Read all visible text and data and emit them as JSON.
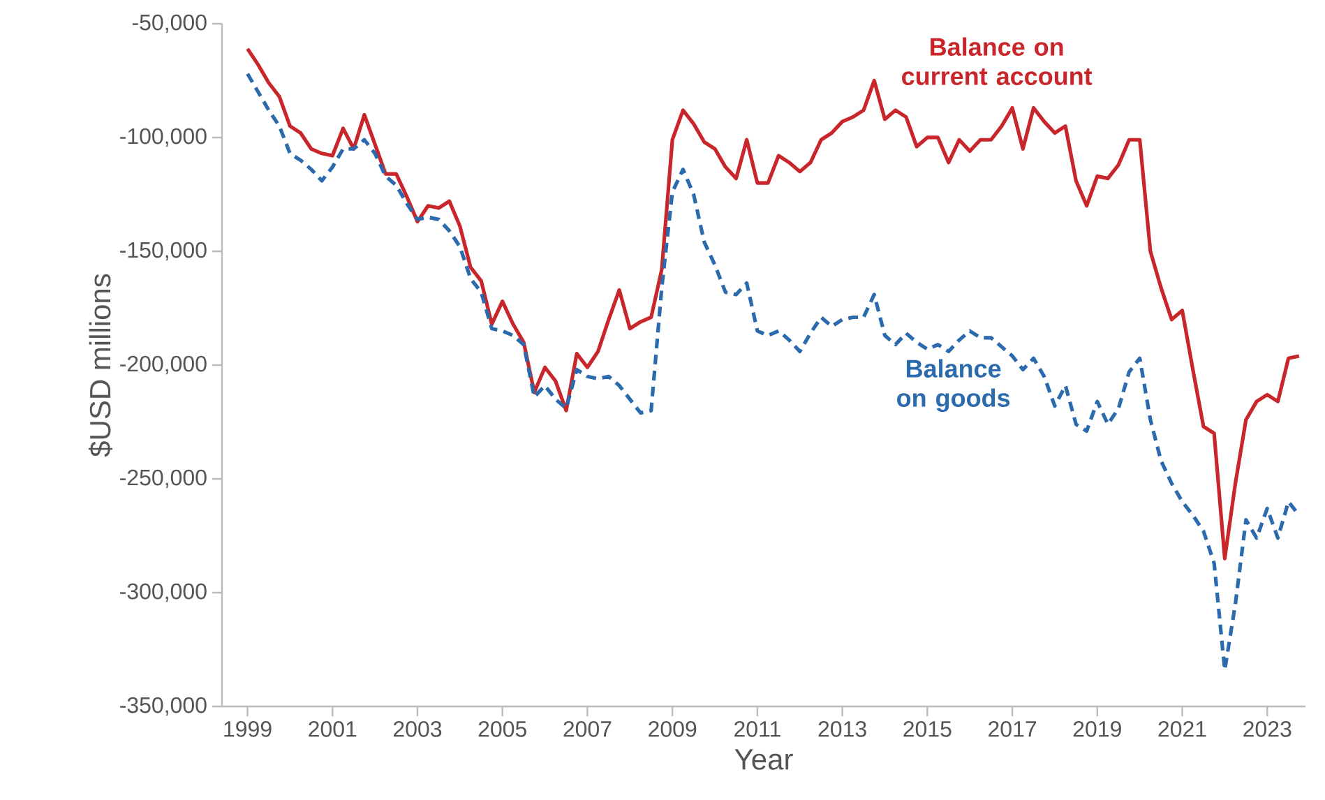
{
  "chart_data": {
    "type": "line",
    "xlabel": "Year",
    "ylabel": "$USD millions",
    "x": [
      1999,
      1999.25,
      1999.5,
      1999.75,
      2000,
      2000.25,
      2000.5,
      2000.75,
      2001,
      2001.25,
      2001.5,
      2001.75,
      2002,
      2002.25,
      2002.5,
      2002.75,
      2003,
      2003.25,
      2003.5,
      2003.75,
      2004,
      2004.25,
      2004.5,
      2004.75,
      2005,
      2005.25,
      2005.5,
      2005.75,
      2006,
      2006.25,
      2006.5,
      2006.75,
      2007,
      2007.25,
      2007.5,
      2007.75,
      2008,
      2008.25,
      2008.5,
      2008.75,
      2009,
      2009.25,
      2009.5,
      2009.75,
      2010,
      2010.25,
      2010.5,
      2010.75,
      2011,
      2011.25,
      2011.5,
      2011.75,
      2012,
      2012.25,
      2012.5,
      2012.75,
      2013,
      2013.25,
      2013.5,
      2013.75,
      2014,
      2014.25,
      2014.5,
      2014.75,
      2015,
      2015.25,
      2015.5,
      2015.75,
      2016,
      2016.25,
      2016.5,
      2016.75,
      2017,
      2017.25,
      2017.5,
      2017.75,
      2018,
      2018.25,
      2018.5,
      2018.75,
      2019,
      2019.25,
      2019.5,
      2019.75,
      2020,
      2020.25,
      2020.5,
      2020.75,
      2021,
      2021.25,
      2021.5,
      2021.75,
      2022,
      2022.25,
      2022.5,
      2022.75,
      2023,
      2023.25,
      2023.5,
      2023.75
    ],
    "series": [
      {
        "name": "Balance on current account",
        "color": "#c8262b",
        "line_style": "solid",
        "values": [
          -61000,
          -68000,
          -76000,
          -82000,
          -95000,
          -98000,
          -105000,
          -107000,
          -108000,
          -96000,
          -105000,
          -90000,
          -103000,
          -116000,
          -116000,
          -126000,
          -137000,
          -130000,
          -131000,
          -128000,
          -139000,
          -157000,
          -163000,
          -182000,
          -172000,
          -182000,
          -190000,
          -212000,
          -201000,
          -207000,
          -220000,
          -195000,
          -201000,
          -194000,
          -180000,
          -167000,
          -184000,
          -181000,
          -179000,
          -158000,
          -101000,
          -88000,
          -94000,
          -102000,
          -105000,
          -113000,
          -118000,
          -101000,
          -120000,
          -120000,
          -108000,
          -111000,
          -115000,
          -111000,
          -101000,
          -98000,
          -93000,
          -91000,
          -88000,
          -75000,
          -92000,
          -88000,
          -91000,
          -104000,
          -100000,
          -100000,
          -111000,
          -101000,
          -106000,
          -101000,
          -101000,
          -95000,
          -87000,
          -105000,
          -87000,
          -93000,
          -98000,
          -95000,
          -119000,
          -130000,
          -117000,
          -118000,
          -112000,
          -101000,
          -101000,
          -150000,
          -166000,
          -180000,
          -176000,
          -202000,
          -227000,
          -230000,
          -285000,
          -252000,
          -224000,
          -216000,
          -213000,
          -216000,
          -197000,
          -196000
        ]
      },
      {
        "name": "Balance on goods",
        "color": "#2a6aad",
        "line_style": "dashed",
        "values": [
          -72000,
          -80000,
          -88000,
          -95000,
          -107000,
          -110000,
          -114000,
          -119000,
          -113000,
          -105000,
          -105000,
          -101000,
          -107000,
          -117000,
          -121000,
          -129000,
          -136000,
          -135000,
          -136000,
          -141000,
          -148000,
          -162000,
          -168000,
          -184000,
          -185000,
          -187000,
          -191000,
          -214000,
          -209000,
          -215000,
          -219000,
          -202000,
          -205000,
          -206000,
          -205000,
          -209000,
          -215000,
          -221000,
          -220000,
          -166000,
          -124000,
          -114000,
          -125000,
          -146000,
          -156000,
          -168000,
          -169000,
          -164000,
          -185000,
          -187000,
          -185000,
          -189000,
          -194000,
          -186000,
          -179000,
          -183000,
          -180000,
          -179000,
          -179000,
          -169000,
          -187000,
          -191000,
          -186000,
          -190000,
          -193000,
          -191000,
          -194000,
          -189000,
          -185000,
          -188000,
          -188000,
          -192000,
          -196000,
          -202000,
          -197000,
          -205000,
          -218000,
          -209000,
          -226000,
          -229000,
          -216000,
          -226000,
          -219000,
          -203000,
          -197000,
          -224000,
          -242000,
          -252000,
          -260000,
          -266000,
          -273000,
          -287000,
          -334000,
          -305000,
          -268000,
          -276000,
          -263000,
          -276000,
          -260000,
          -266000
        ]
      }
    ],
    "xlim": [
      1998.4,
      2023.9
    ],
    "xticks": [
      1999,
      2001,
      2003,
      2005,
      2007,
      2009,
      2011,
      2013,
      2015,
      2017,
      2019,
      2021,
      2023
    ],
    "ylim": [
      -350000,
      -50000
    ],
    "yticks": [
      {
        "value": -350000,
        "label": "-350,000"
      },
      {
        "value": -300000,
        "label": "-300,000"
      },
      {
        "value": -250000,
        "label": "-250,000"
      },
      {
        "value": -200000,
        "label": "-200,000"
      },
      {
        "value": -150000,
        "label": "-150,000"
      },
      {
        "value": -100000,
        "label": "-100,000"
      },
      {
        "value": -50000,
        "label": "-50,000"
      }
    ],
    "grid": false,
    "legend": false,
    "marker": "none"
  }
}
